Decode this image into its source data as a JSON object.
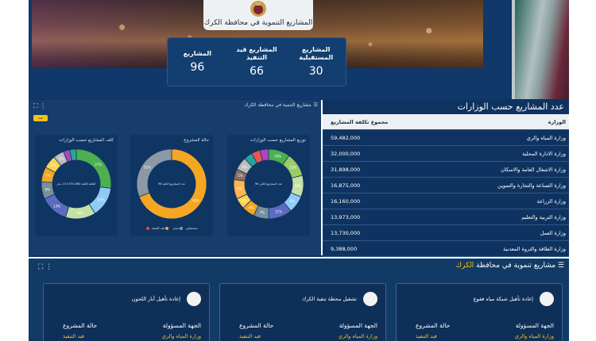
{
  "hero": {
    "badge_title": "المشاريع التنموية في محافظة الكرك",
    "stats": [
      {
        "label": "المشاريع",
        "value": "96"
      },
      {
        "label": "المشاريع قيد التنفيذ",
        "value": "66"
      },
      {
        "label": "المشاريع المستقبلية",
        "value": "30"
      }
    ]
  },
  "dashboard": {
    "header": "مشاريع التنمية في محافظة الكرك",
    "filter_label": "عدد",
    "cards": [
      {
        "title": "توزيع المشاريع حسب الوزارات",
        "center": "عدد المشاريع الكلي 96"
      },
      {
        "title": "حالة المشروع",
        "center": "عدد المشاريع الكلية 96"
      },
      {
        "title": "كلف المشاريع حسب الوزارات",
        "center": "الكلفة الكلية 223,974,880 دينار"
      }
    ],
    "status_legend": [
      "قيد التنفيذ",
      "منجز",
      "مستقبلي"
    ]
  },
  "ministry_chart": {
    "type": "table",
    "title": "عدد المشاريع حسب الوزارات",
    "columns": [
      "الوزارة",
      "مجموع تكلفة المشاريع"
    ],
    "rows": [
      [
        "وزارة المياه والري",
        "59,482,000"
      ],
      [
        "وزارة الادارة المحلية",
        "32,000,000"
      ],
      [
        "وزارة الاشغال العامة والاسكان",
        "31,898,000"
      ],
      [
        "وزارة الصناعة والتجارة والتموين",
        "16,875,000"
      ],
      [
        "وزارة الزراعة",
        "16,160,000"
      ],
      [
        "وزارة التربية والتعليم",
        "13,973,000"
      ],
      [
        "وزارة العمل",
        "13,730,000"
      ],
      [
        "وزارة الطاقة والثروة المعدنية",
        "9,388,000"
      ]
    ]
  },
  "chart_data": [
    {
      "type": "pie",
      "title": "توزيع المشاريع حسب الوزارات",
      "slices": [
        10,
        11,
        10,
        8,
        11,
        7,
        6,
        5,
        9,
        5,
        6,
        4,
        4,
        4
      ]
    },
    {
      "type": "pie",
      "title": "حالة المشروع",
      "slices": [
        69,
        31
      ],
      "colors": [
        "#f5a623",
        "#8c98a6"
      ]
    },
    {
      "type": "pie",
      "title": "كلف المشاريع حسب الوزارات",
      "slices": [
        27,
        14,
        14,
        13,
        8,
        7,
        6,
        5,
        3,
        3
      ]
    }
  ],
  "projects": {
    "title_prefix": "مشاريع تنموية في محافظة",
    "title_highlight": "الكرك",
    "field1_label": "الجهة المسؤولة",
    "field2_label": "حالة المشروع",
    "items": [
      {
        "title": "إعادة تأهيل شبكة مياه فقوع",
        "entity": "وزارة المياه والري",
        "status": "قيد التنفيذ"
      },
      {
        "title": "تشغيل محطة تنقية الكرك",
        "entity": "وزارة المياه والري",
        "status": "قيد التنفيذ"
      },
      {
        "title": "إعادة تأهيل آبار اللجون",
        "entity": "وزارة المياه والري",
        "status": "قيد التنفيذ"
      }
    ]
  },
  "colors": {
    "bg": "#0f3361",
    "accent": "#f0c419"
  }
}
